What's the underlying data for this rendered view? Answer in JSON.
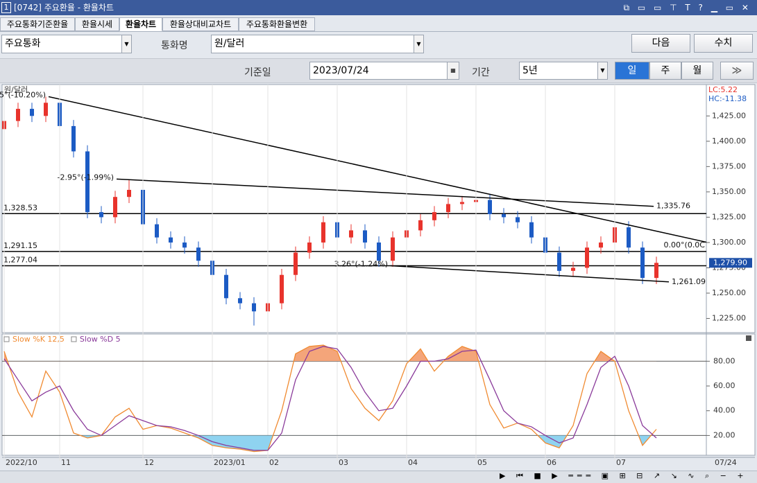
{
  "window": {
    "badge": "1",
    "title": "[0742] 주요환율 - 환율차트"
  },
  "tabs": [
    "주요통화기준환율",
    "환율시세",
    "환율차트",
    "환율상대비교차트",
    "주요통화환율변환"
  ],
  "controls": {
    "currency_group": "주요통화",
    "currency_label": "통화명",
    "currency": "원/달러",
    "next": "다음",
    "values_btn": "수치",
    "base_date_label": "기준일",
    "base_date": "2023/07/24",
    "period_label": "기간",
    "period": "5년",
    "intervals": [
      "일",
      "주",
      "월"
    ]
  },
  "chart_data": [
    {
      "type": "candlestick",
      "title": "원/달러",
      "stats": [
        "LC:5.22",
        "HC:-11.38"
      ],
      "last_date": "07/24",
      "categories": [
        "2022/10",
        null,
        null,
        null,
        "11",
        null,
        null,
        null,
        null,
        null,
        "12",
        null,
        null,
        null,
        null,
        "2023/01",
        null,
        null,
        null,
        "02",
        null,
        null,
        null,
        null,
        "03",
        null,
        null,
        null,
        null,
        "04",
        null,
        null,
        null,
        null,
        "05",
        null,
        null,
        null,
        null,
        "06",
        null,
        null,
        null,
        null,
        "07",
        null,
        null,
        null
      ],
      "open": [
        1412,
        1420,
        1432,
        1425,
        1438,
        1415,
        1390,
        1330,
        1325,
        1345,
        1352,
        1318,
        1305,
        1300,
        1295,
        1282,
        1268,
        1245,
        1240,
        1232,
        1240,
        1268,
        1290,
        1300,
        1320,
        1305,
        1312,
        1300,
        1282,
        1305,
        1312,
        1322,
        1330,
        1338,
        1340,
        1342,
        1328,
        1325,
        1320,
        1305,
        1290,
        1272,
        1275,
        1295,
        1300,
        1315,
        1295,
        1265
      ],
      "high": [
        1426,
        1438,
        1438,
        1444,
        1444,
        1421,
        1396,
        1336,
        1351,
        1362,
        1358,
        1324,
        1311,
        1306,
        1301,
        1288,
        1274,
        1251,
        1246,
        1246,
        1274,
        1296,
        1306,
        1326,
        1326,
        1318,
        1318,
        1306,
        1311,
        1318,
        1328,
        1336,
        1344,
        1346,
        1348,
        1348,
        1334,
        1331,
        1326,
        1311,
        1296,
        1281,
        1301,
        1306,
        1321,
        1321,
        1301,
        1286
      ],
      "low": [
        1406,
        1414,
        1419,
        1419,
        1409,
        1384,
        1324,
        1319,
        1319,
        1339,
        1312,
        1299,
        1294,
        1289,
        1276,
        1262,
        1239,
        1234,
        1218,
        1226,
        1234,
        1262,
        1284,
        1294,
        1299,
        1299,
        1294,
        1276,
        1276,
        1299,
        1306,
        1316,
        1324,
        1332,
        1334,
        1322,
        1319,
        1314,
        1299,
        1284,
        1266,
        1266,
        1269,
        1289,
        1294,
        1289,
        1259,
        1259
      ],
      "close": [
        1420,
        1432,
        1425,
        1438,
        1415,
        1390,
        1330,
        1325,
        1345,
        1352,
        1318,
        1305,
        1300,
        1295,
        1282,
        1268,
        1245,
        1240,
        1232,
        1240,
        1268,
        1290,
        1300,
        1320,
        1305,
        1312,
        1300,
        1282,
        1305,
        1312,
        1322,
        1330,
        1338,
        1340,
        1342,
        1328,
        1325,
        1320,
        1305,
        1290,
        1272,
        1275,
        1295,
        1300,
        1315,
        1295,
        1265,
        1279.9
      ],
      "up_color": "#e8332c",
      "down_color": "#1c5bc4",
      "ylim": [
        1211,
        1456
      ],
      "yticks": [
        {
          "value": 1225,
          "label": "1,225.00"
        },
        {
          "value": 1250,
          "label": "1,250.00"
        },
        {
          "value": 1275,
          "label": "1,275.00"
        },
        {
          "value": 1300,
          "label": "1,300.00"
        },
        {
          "value": 1325,
          "label": "1,325.00"
        },
        {
          "value": 1350,
          "label": "1,350.00"
        },
        {
          "value": 1375,
          "label": "1,375.00"
        },
        {
          "value": 1400,
          "label": "1,400.00"
        },
        {
          "value": 1425,
          "label": "1,425.00"
        }
      ],
      "hlines": [
        {
          "value": 1328.53,
          "label": "1,328.53"
        },
        {
          "value": 1291.15,
          "label": "1,291.15",
          "end_label": "0.00°(0.0C"
        },
        {
          "value": 1277.04,
          "label": "1,277.04"
        }
      ],
      "trendlines": [
        {
          "x": [
            3.2,
            50.6
          ],
          "values": [
            1444,
            1300.3
          ],
          "label": "5°(-10.20%)"
        },
        {
          "x": [
            8.1,
            46.8
          ],
          "values": [
            1362.7,
            1335.76
          ],
          "label": "-2.95°(-1.99%)",
          "end_label": "1,335.76"
        },
        {
          "x": [
            27.85,
            47.9
          ],
          "values": [
            1277,
            1261.09
          ],
          "label": "3.26°(-1.24%)",
          "end_label": "1,261.09"
        }
      ],
      "last_value": {
        "value": 1279.9,
        "label": "1,279.90"
      }
    },
    {
      "type": "line",
      "ylim": [
        4,
        102
      ],
      "yticks": [
        {
          "value": 20,
          "label": "20.00"
        },
        {
          "value": 40,
          "label": "40.00"
        },
        {
          "value": 60,
          "label": "60.00"
        },
        {
          "value": 80,
          "label": "80.00"
        }
      ],
      "hlines": [
        20,
        80
      ],
      "overbought_color": "#f4a57a",
      "oversold_color": "#8fd3f0",
      "series": [
        {
          "name": "Slow %K 12,5",
          "color": "#f08a30",
          "values": [
            88,
            55,
            35,
            72,
            55,
            22,
            18,
            20,
            35,
            42,
            25,
            28,
            26,
            22,
            18,
            12,
            10,
            9,
            7,
            8,
            40,
            86,
            92,
            93,
            88,
            58,
            42,
            32,
            48,
            78,
            90,
            72,
            84,
            92,
            88,
            45,
            26,
            30,
            25,
            14,
            10,
            28,
            70,
            88,
            80,
            40,
            12,
            25
          ]
        },
        {
          "name": "Slow %D 5",
          "color": "#8a3a9a",
          "values": [
            82,
            65,
            48,
            55,
            60,
            40,
            25,
            20,
            28,
            36,
            32,
            28,
            27,
            24,
            20,
            15,
            12,
            10,
            8,
            8,
            22,
            65,
            88,
            92,
            90,
            75,
            55,
            40,
            42,
            60,
            80,
            80,
            82,
            88,
            89,
            65,
            40,
            30,
            27,
            20,
            14,
            18,
            45,
            75,
            84,
            60,
            28,
            18
          ]
        }
      ]
    }
  ]
}
